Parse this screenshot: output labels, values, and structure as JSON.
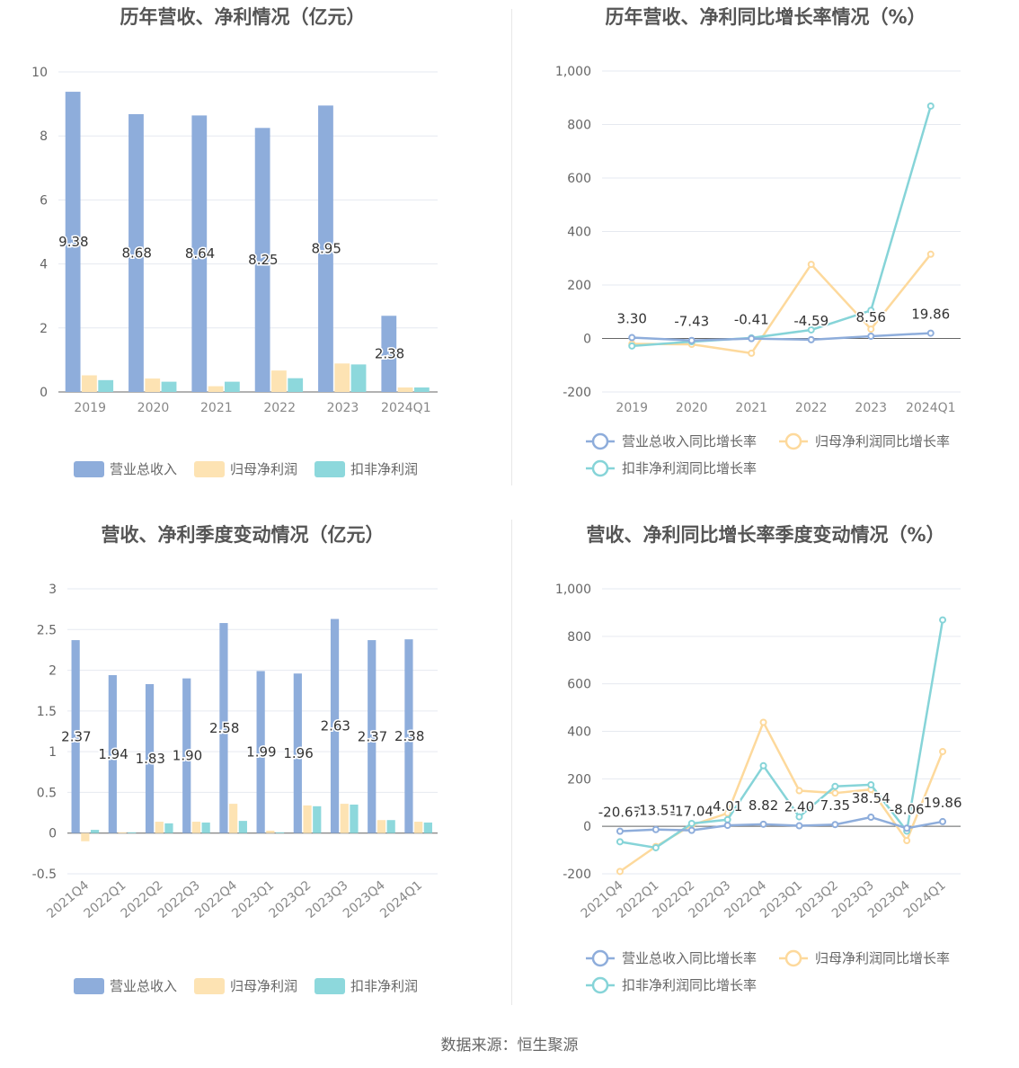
{
  "source": "数据来源：恒生聚源",
  "colors": {
    "revenue": "#8eaddb",
    "netprofit": "#fde3b3",
    "deducted": "#8dd8dc",
    "revenue_line": "#8eaddb",
    "netprofit_line": "#fdd99c",
    "deducted_line": "#86d4d8"
  },
  "chart_data": [
    {
      "type": "bar",
      "title": "历年营收、净利情况（亿元）",
      "categories": [
        "2019",
        "2020",
        "2021",
        "2022",
        "2023",
        "2024Q1"
      ],
      "ylim": [
        0,
        10
      ],
      "yticks": [
        "0",
        "2",
        "4",
        "6",
        "8",
        "10"
      ],
      "legend": "bottom",
      "series": [
        {
          "name": "营业总收入",
          "values": [
            9.38,
            8.68,
            8.64,
            8.25,
            8.95,
            2.38
          ],
          "labels": [
            "9.38",
            "8.68",
            "8.64",
            "8.25",
            "8.95",
            "2.38"
          ]
        },
        {
          "name": "归母净利润",
          "values": [
            0.52,
            0.42,
            0.18,
            0.67,
            0.89,
            0.14
          ]
        },
        {
          "name": "扣非净利润",
          "values": [
            0.37,
            0.32,
            0.32,
            0.43,
            0.86,
            0.14
          ]
        }
      ]
    },
    {
      "type": "line",
      "title": "历年营收、净利同比增长率情况（%）",
      "categories": [
        "2019",
        "2020",
        "2021",
        "2022",
        "2023",
        "2024Q1"
      ],
      "ylim": [
        -200,
        1000
      ],
      "yticks": [
        "-200",
        "0",
        "200",
        "400",
        "600",
        "800",
        "1,000"
      ],
      "legend": "bottom",
      "series": [
        {
          "name": "营业总收入同比增长率",
          "values": [
            3.3,
            -7.43,
            -0.41,
            -4.59,
            8.56,
            19.86
          ],
          "labels": [
            "3.30",
            "-7.43",
            "-0.41",
            "-4.59",
            "8.56",
            "19.86"
          ]
        },
        {
          "name": "归母净利润同比增长率",
          "values": [
            -20,
            -22,
            -55,
            277,
            35,
            315
          ]
        },
        {
          "name": "扣非净利润同比增长率",
          "values": [
            -28,
            -12,
            2,
            32,
            105,
            869
          ]
        }
      ]
    },
    {
      "type": "bar",
      "title": "营收、净利季度变动情况（亿元）",
      "categories": [
        "2021Q4",
        "2022Q1",
        "2022Q2",
        "2022Q3",
        "2022Q4",
        "2023Q1",
        "2023Q2",
        "2023Q3",
        "2023Q4",
        "2024Q1"
      ],
      "ylim": [
        -0.5,
        3
      ],
      "yticks": [
        "-0.5",
        "0",
        "0.5",
        "1",
        "1.5",
        "2",
        "2.5",
        "3"
      ],
      "legend": "bottom",
      "series": [
        {
          "name": "营业总收入",
          "values": [
            2.37,
            1.94,
            1.83,
            1.9,
            2.58,
            1.99,
            1.96,
            2.63,
            2.37,
            2.38
          ],
          "labels": [
            "2.37",
            "1.94",
            "1.83",
            "1.90",
            "2.58",
            "1.99",
            "1.96",
            "2.63",
            "2.37",
            "2.38"
          ]
        },
        {
          "name": "归母净利润",
          "values": [
            -0.1,
            0.01,
            0.14,
            0.14,
            0.36,
            0.03,
            0.34,
            0.36,
            0.16,
            0.14
          ]
        },
        {
          "name": "扣非净利润",
          "values": [
            0.04,
            0.01,
            0.12,
            0.13,
            0.15,
            0.01,
            0.33,
            0.35,
            0.16,
            0.13
          ]
        }
      ]
    },
    {
      "type": "line",
      "title": "营收、净利同比增长率季度变动情况（%）",
      "categories": [
        "2021Q4",
        "2022Q1",
        "2022Q2",
        "2022Q3",
        "2022Q4",
        "2023Q1",
        "2023Q2",
        "2023Q3",
        "2023Q4",
        "2024Q1"
      ],
      "ylim": [
        -200,
        1000
      ],
      "yticks": [
        "-200",
        "0",
        "200",
        "400",
        "600",
        "800",
        "1,000"
      ],
      "legend": "bottom",
      "series": [
        {
          "name": "营业总收入同比增长率",
          "values": [
            -20.67,
            -13.51,
            -17.04,
            4.01,
            8.82,
            2.4,
            7.35,
            38.54,
            -8.06,
            19.86
          ],
          "labels": [
            "-20.67",
            "-13.51",
            "-17.04",
            "4.01",
            "8.82",
            "2.40",
            "7.35",
            "38.54",
            "-8.06",
            "19.86"
          ]
        },
        {
          "name": "归母净利润同比增长率",
          "values": [
            -190,
            -85,
            5,
            55,
            438,
            150,
            140,
            155,
            -60,
            315
          ]
        },
        {
          "name": "扣非净利润同比增长率",
          "values": [
            -65,
            -90,
            12,
            28,
            255,
            40,
            168,
            175,
            -20,
            869
          ]
        }
      ]
    }
  ]
}
